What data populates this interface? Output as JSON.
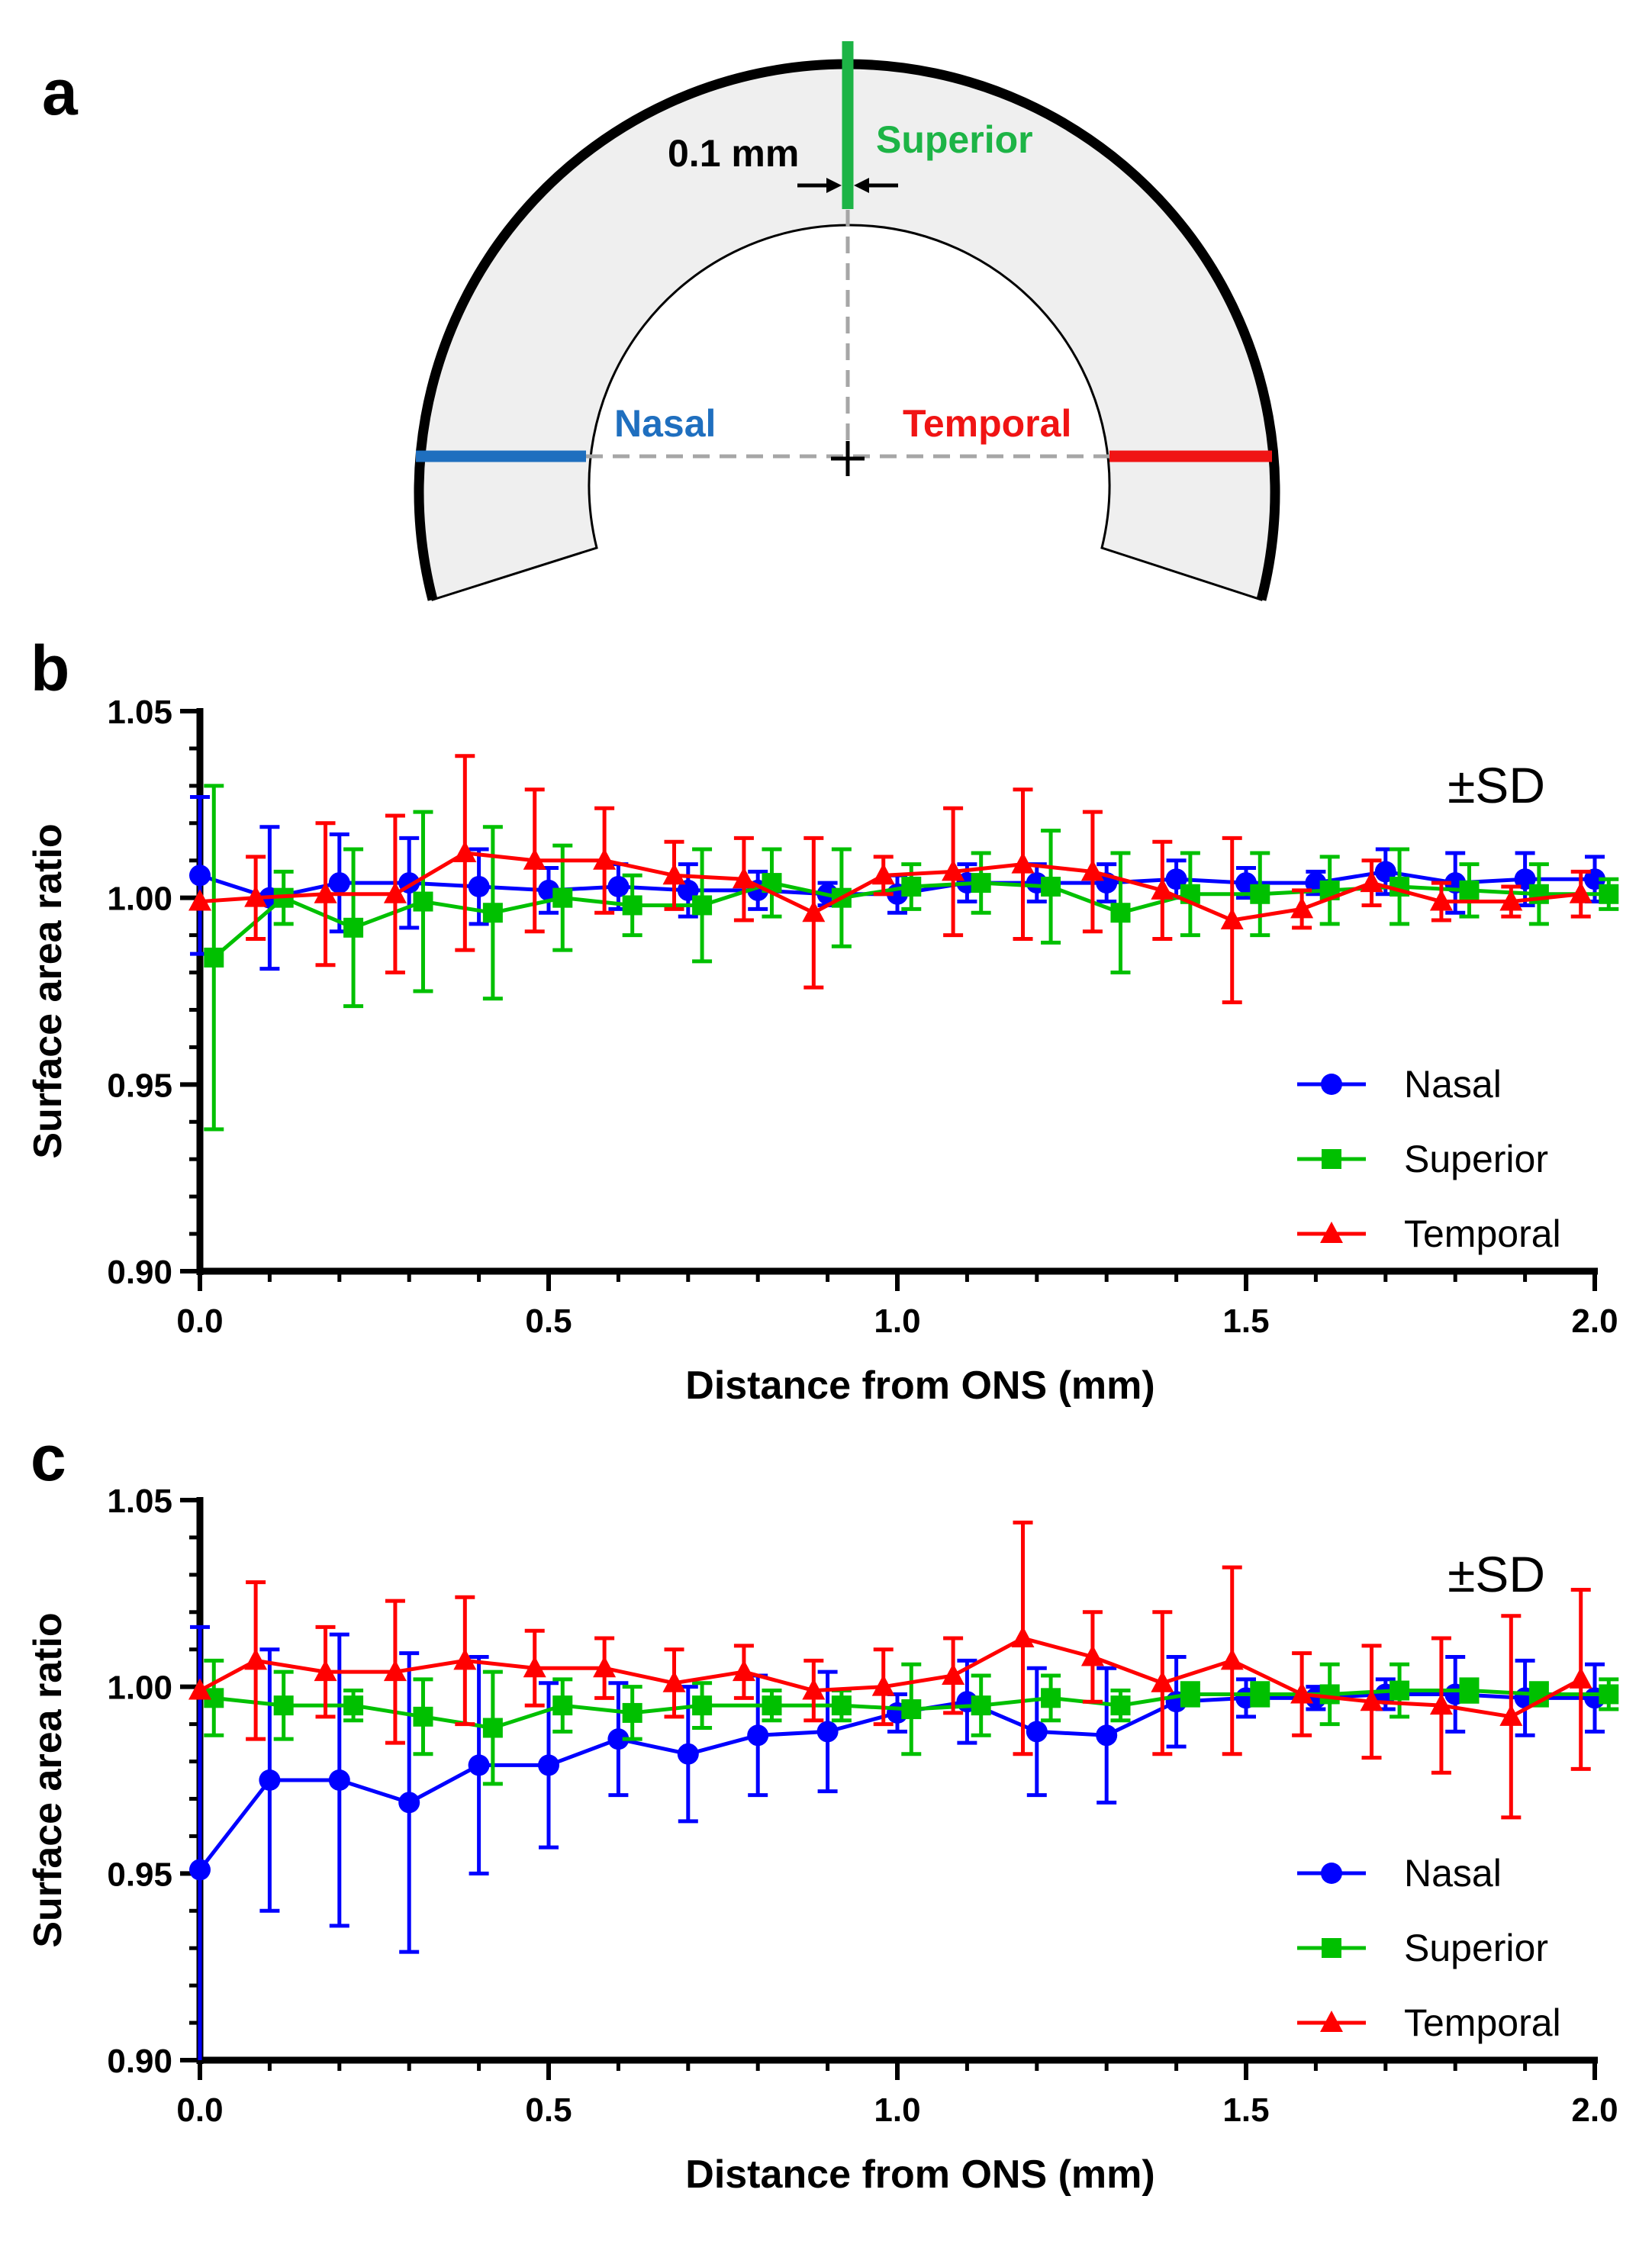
{
  "figure": {
    "panel_letters": [
      "a",
      "b",
      "c"
    ]
  },
  "schematic": {
    "labels": {
      "thickness": "0.1 mm",
      "superior": "Superior",
      "nasal": "Nasal",
      "temporal": "Temporal"
    },
    "colors": {
      "superior": "#1db446",
      "nasal": "#1f6fbf",
      "temporal": "#f01414",
      "fill": "#efefef",
      "guide": "#a6a6a6"
    }
  },
  "chart_data": [
    {
      "type": "line",
      "panel": "b",
      "title": "",
      "annotation": "±SD",
      "xlabel": "Distance from ONS (mm)",
      "ylabel": "Surface area ratio",
      "xlim": [
        0.0,
        2.0
      ],
      "ylim": [
        0.9,
        1.05
      ],
      "x_ticks": [
        "0.0",
        "0.5",
        "1.0",
        "1.5",
        "2.0"
      ],
      "y_ticks": [
        "0.90",
        "0.95",
        "1.00",
        "1.05"
      ],
      "legend_position": "bottom-right",
      "series": [
        {
          "name": "Nasal",
          "color": "#0000ff",
          "marker": "circle",
          "x": [
            0.0,
            0.1,
            0.2,
            0.3,
            0.4,
            0.5,
            0.6,
            0.7,
            0.8,
            0.9,
            1.0,
            1.1,
            1.2,
            1.3,
            1.4,
            1.5,
            1.6,
            1.7,
            1.8,
            1.9,
            2.0
          ],
          "y": [
            1.006,
            1.0,
            1.004,
            1.004,
            1.003,
            1.002,
            1.003,
            1.002,
            1.002,
            1.001,
            1.001,
            1.004,
            1.004,
            1.004,
            1.005,
            1.004,
            1.004,
            1.007,
            1.004,
            1.005,
            1.005
          ],
          "sd": [
            0.021,
            0.019,
            0.013,
            0.012,
            0.01,
            0.006,
            0.006,
            0.007,
            0.005,
            0.003,
            0.005,
            0.005,
            0.005,
            0.005,
            0.005,
            0.004,
            0.003,
            0.006,
            0.008,
            0.007,
            0.006
          ]
        },
        {
          "name": "Superior",
          "color": "#00c000",
          "marker": "square",
          "x": [
            0.02,
            0.12,
            0.22,
            0.32,
            0.42,
            0.52,
            0.62,
            0.72,
            0.82,
            0.92,
            1.02,
            1.12,
            1.22,
            1.32,
            1.42,
            1.52,
            1.62,
            1.72,
            1.82,
            1.92,
            2.02
          ],
          "y": [
            0.984,
            1.0,
            0.992,
            0.999,
            0.996,
            1.0,
            0.998,
            0.998,
            1.004,
            1.0,
            1.003,
            1.004,
            1.003,
            0.996,
            1.001,
            1.001,
            1.002,
            1.003,
            1.002,
            1.001,
            1.001
          ],
          "sd": [
            0.046,
            0.007,
            0.021,
            0.024,
            0.023,
            0.014,
            0.008,
            0.015,
            0.009,
            0.013,
            0.006,
            0.008,
            0.015,
            0.016,
            0.011,
            0.011,
            0.009,
            0.01,
            0.007,
            0.008,
            0.004
          ]
        },
        {
          "name": "Temporal",
          "color": "#ff0000",
          "marker": "triangle",
          "x": [
            0.0,
            0.08,
            0.18,
            0.28,
            0.38,
            0.48,
            0.58,
            0.68,
            0.78,
            0.88,
            0.98,
            1.08,
            1.18,
            1.28,
            1.38,
            1.48,
            1.58,
            1.68,
            1.78,
            1.88,
            1.98
          ],
          "y": [
            0.999,
            1.0,
            1.001,
            1.001,
            1.012,
            1.01,
            1.01,
            1.006,
            1.005,
            0.996,
            1.006,
            1.007,
            1.009,
            1.007,
            1.002,
            0.994,
            0.997,
            1.004,
            0.999,
            0.999,
            1.001
          ],
          "sd": [
            0.0,
            0.011,
            0.019,
            0.021,
            0.026,
            0.019,
            0.014,
            0.009,
            0.011,
            0.02,
            0.005,
            0.017,
            0.02,
            0.016,
            0.013,
            0.022,
            0.005,
            0.006,
            0.005,
            0.004,
            0.006
          ]
        }
      ]
    },
    {
      "type": "line",
      "panel": "c",
      "title": "",
      "annotation": "±SD",
      "xlabel": "Distance from ONS (mm)",
      "ylabel": "Surface area ratio",
      "xlim": [
        0.0,
        2.0
      ],
      "ylim": [
        0.9,
        1.05
      ],
      "x_ticks": [
        "0.0",
        "0.5",
        "1.0",
        "1.5",
        "2.0"
      ],
      "y_ticks": [
        "0.90",
        "0.95",
        "1.00",
        "1.05"
      ],
      "legend_position": "bottom-right",
      "series": [
        {
          "name": "Nasal",
          "color": "#0000ff",
          "marker": "circle",
          "x": [
            0.0,
            0.1,
            0.2,
            0.3,
            0.4,
            0.5,
            0.6,
            0.7,
            0.8,
            0.9,
            1.0,
            1.1,
            1.2,
            1.3,
            1.4,
            1.5,
            1.6,
            1.7,
            1.8,
            1.9,
            2.0
          ],
          "y": [
            0.951,
            0.975,
            0.975,
            0.969,
            0.979,
            0.979,
            0.986,
            0.982,
            0.987,
            0.988,
            0.993,
            0.996,
            0.988,
            0.987,
            0.996,
            0.997,
            0.997,
            0.998,
            0.998,
            0.997,
            0.997
          ],
          "sd": [
            0.065,
            0.035,
            0.039,
            0.04,
            0.029,
            0.022,
            0.015,
            0.018,
            0.016,
            0.016,
            0.005,
            0.011,
            0.017,
            0.018,
            0.012,
            0.005,
            0.003,
            0.004,
            0.01,
            0.01,
            0.009
          ]
        },
        {
          "name": "Superior",
          "color": "#00c000",
          "marker": "square",
          "x": [
            0.02,
            0.12,
            0.22,
            0.32,
            0.42,
            0.52,
            0.62,
            0.72,
            0.82,
            0.92,
            1.02,
            1.12,
            1.22,
            1.32,
            1.42,
            1.52,
            1.62,
            1.72,
            1.82,
            1.92,
            2.02
          ],
          "y": [
            0.997,
            0.995,
            0.995,
            0.992,
            0.989,
            0.995,
            0.993,
            0.995,
            0.995,
            0.995,
            0.994,
            0.995,
            0.997,
            0.995,
            0.998,
            0.998,
            0.998,
            0.999,
            0.999,
            0.998,
            0.998
          ],
          "sd": [
            0.01,
            0.009,
            0.004,
            0.01,
            0.015,
            0.007,
            0.007,
            0.006,
            0.004,
            0.004,
            0.012,
            0.008,
            0.006,
            0.004,
            0.003,
            0.003,
            0.008,
            0.007,
            0.003,
            0.003,
            0.004
          ]
        },
        {
          "name": "Temporal",
          "color": "#ff0000",
          "marker": "triangle",
          "x": [
            0.0,
            0.08,
            0.18,
            0.28,
            0.38,
            0.48,
            0.58,
            0.68,
            0.78,
            0.88,
            0.98,
            1.08,
            1.18,
            1.28,
            1.38,
            1.48,
            1.58,
            1.68,
            1.78,
            1.88,
            1.98
          ],
          "y": [
            0.999,
            1.007,
            1.004,
            1.004,
            1.007,
            1.005,
            1.005,
            1.001,
            1.004,
            0.999,
            1.0,
            1.003,
            1.013,
            1.008,
            1.001,
            1.007,
            0.998,
            0.996,
            0.995,
            0.992,
            1.002
          ],
          "sd": [
            0.0,
            0.021,
            0.012,
            0.019,
            0.017,
            0.01,
            0.008,
            0.009,
            0.007,
            0.008,
            0.01,
            0.01,
            0.031,
            0.012,
            0.019,
            0.025,
            0.011,
            0.015,
            0.018,
            0.027,
            0.024
          ]
        }
      ]
    }
  ]
}
